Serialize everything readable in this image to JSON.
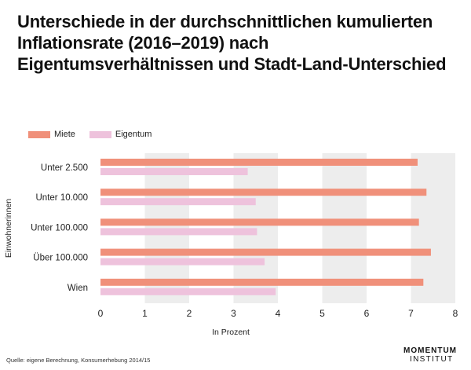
{
  "chart_data": {
    "type": "bar",
    "orientation": "horizontal",
    "title": "Unterschiede in der durchschnittlichen kumulierten Inflationsrate (2016–2019) nach Eigentumsverhältnissen und Stadt-Land-Unterschied",
    "categories": [
      "Unter 2.500",
      "Unter 10.000",
      "Unter 100.000",
      "Über 100.000",
      "Wien"
    ],
    "series": [
      {
        "name": "Miete",
        "values": [
          7.15,
          7.35,
          7.18,
          7.45,
          7.28
        ],
        "color": "#f0907a"
      },
      {
        "name": "Eigentum",
        "values": [
          3.32,
          3.5,
          3.53,
          3.7,
          3.95
        ],
        "color": "#eec2dc"
      }
    ],
    "xlabel": "In Prozent",
    "ylabel": "Einwohnerinnen",
    "xlim": [
      0,
      8
    ],
    "xticks": [
      "0",
      "1",
      "2",
      "3",
      "4",
      "5",
      "6",
      "7",
      "8"
    ],
    "grid": "alternating-bands",
    "legend": "top-left"
  },
  "footer": {
    "source": "Quelle: eigene Berechnung, Konsumerhebung 2014/15",
    "logo_line1": "MOMENTUM",
    "logo_line2": "INSTITUT"
  }
}
